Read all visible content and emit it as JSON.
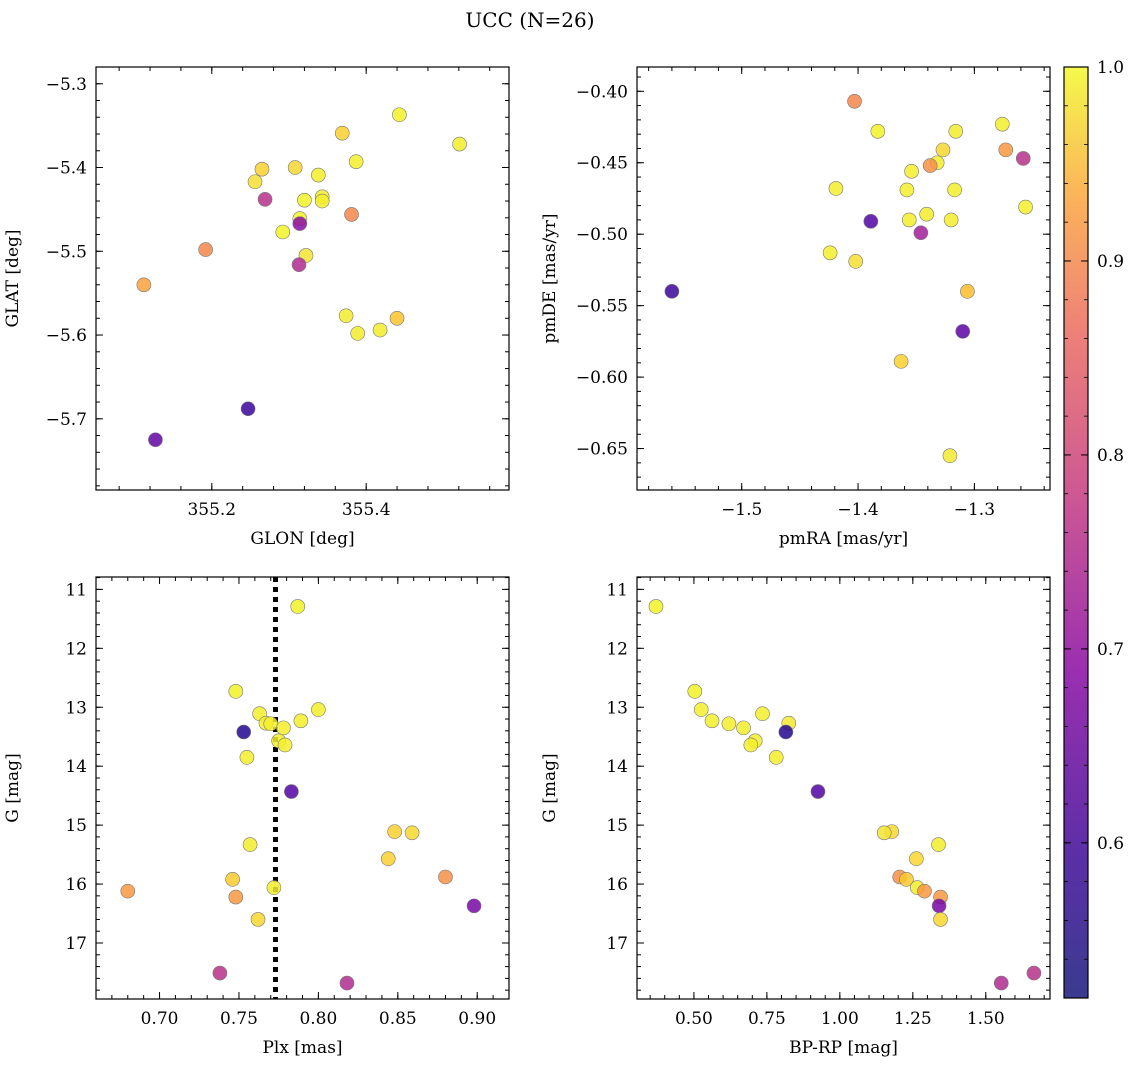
{
  "figure": {
    "title": "UCC (N=26)"
  },
  "colorbar": {
    "ticks": [
      "1.0",
      "0.9",
      "0.8",
      "0.7",
      "0.6"
    ],
    "tick_values": [
      1.0,
      0.9,
      0.8,
      0.7,
      0.6
    ],
    "vmin": 0.52,
    "vmax": 1.0,
    "colormap": "plasma"
  },
  "chart_data": [
    {
      "type": "scatter",
      "xlabel": "GLON [deg]",
      "ylabel": "GLAT [deg]",
      "xlim": [
        355.05,
        355.585
      ],
      "ylim": [
        -5.785,
        -5.28
      ],
      "xticks": [
        355.2,
        355.4
      ],
      "xtick_labels": [
        "355.2",
        "355.4"
      ],
      "yticks": [
        -5.3,
        -5.4,
        -5.5,
        -5.6,
        -5.7
      ],
      "ytick_labels": [
        "−5.3",
        "−5.4",
        "−5.5",
        "−5.6",
        "−5.7"
      ],
      "points": [
        {
          "x": 355.443,
          "y": -5.337,
          "c": 0.98
        },
        {
          "x": 355.521,
          "y": -5.372,
          "c": 0.97
        },
        {
          "x": 355.369,
          "y": -5.359,
          "c": 0.91
        },
        {
          "x": 355.387,
          "y": -5.393,
          "c": 0.97
        },
        {
          "x": 355.308,
          "y": -5.4,
          "c": 0.92
        },
        {
          "x": 355.265,
          "y": -5.402,
          "c": 0.91
        },
        {
          "x": 355.338,
          "y": -5.409,
          "c": 0.97
        },
        {
          "x": 355.256,
          "y": -5.417,
          "c": 0.93
        },
        {
          "x": 355.343,
          "y": -5.435,
          "c": 0.97
        },
        {
          "x": 355.343,
          "y": -5.44,
          "c": 0.97
        },
        {
          "x": 355.32,
          "y": -5.439,
          "c": 0.98
        },
        {
          "x": 355.269,
          "y": -5.438,
          "c": 0.7
        },
        {
          "x": 355.314,
          "y": -5.461,
          "c": 0.98
        },
        {
          "x": 355.314,
          "y": -5.467,
          "c": 0.64
        },
        {
          "x": 355.381,
          "y": -5.456,
          "c": 0.82
        },
        {
          "x": 355.292,
          "y": -5.477,
          "c": 0.98
        },
        {
          "x": 355.192,
          "y": -5.498,
          "c": 0.82
        },
        {
          "x": 355.322,
          "y": -5.505,
          "c": 0.94
        },
        {
          "x": 355.313,
          "y": -5.516,
          "c": 0.69
        },
        {
          "x": 355.112,
          "y": -5.54,
          "c": 0.85
        },
        {
          "x": 355.374,
          "y": -5.577,
          "c": 0.96
        },
        {
          "x": 355.44,
          "y": -5.58,
          "c": 0.89
        },
        {
          "x": 355.418,
          "y": -5.594,
          "c": 0.96
        },
        {
          "x": 355.389,
          "y": -5.598,
          "c": 0.96
        },
        {
          "x": 355.247,
          "y": -5.688,
          "c": 0.56
        },
        {
          "x": 355.127,
          "y": -5.725,
          "c": 0.6
        }
      ]
    },
    {
      "type": "scatter",
      "xlabel": "pmRA [mas/yr]",
      "ylabel": "pmDE [mas/yr]",
      "xlim": [
        -1.59,
        -1.235
      ],
      "ylim": [
        -0.679,
        -0.383
      ],
      "xticks": [
        -1.5,
        -1.4,
        -1.3
      ],
      "xtick_labels": [
        "−1.5",
        "−1.4",
        "−1.3"
      ],
      "yticks": [
        -0.4,
        -0.45,
        -0.5,
        -0.55,
        -0.6,
        -0.65
      ],
      "ytick_labels": [
        "−0.40",
        "−0.45",
        "−0.50",
        "−0.55",
        "−0.60",
        "−0.65"
      ],
      "points": [
        {
          "x": -1.403,
          "y": -0.407,
          "c": 0.82
        },
        {
          "x": -1.276,
          "y": -0.423,
          "c": 0.97
        },
        {
          "x": -1.383,
          "y": -0.428,
          "c": 0.98
        },
        {
          "x": -1.316,
          "y": -0.428,
          "c": 0.96
        },
        {
          "x": -1.327,
          "y": -0.441,
          "c": 0.92
        },
        {
          "x": -1.273,
          "y": -0.441,
          "c": 0.84
        },
        {
          "x": -1.258,
          "y": -0.447,
          "c": 0.7
        },
        {
          "x": -1.332,
          "y": -0.45,
          "c": 0.96
        },
        {
          "x": -1.338,
          "y": -0.452,
          "c": 0.83
        },
        {
          "x": -1.354,
          "y": -0.456,
          "c": 0.97
        },
        {
          "x": -1.419,
          "y": -0.468,
          "c": 0.97
        },
        {
          "x": -1.358,
          "y": -0.469,
          "c": 0.97
        },
        {
          "x": -1.317,
          "y": -0.469,
          "c": 0.97
        },
        {
          "x": -1.341,
          "y": -0.486,
          "c": 0.96
        },
        {
          "x": -1.356,
          "y": -0.49,
          "c": 0.97
        },
        {
          "x": -1.32,
          "y": -0.49,
          "c": 0.97
        },
        {
          "x": -1.389,
          "y": -0.491,
          "c": 0.58
        },
        {
          "x": -1.256,
          "y": -0.481,
          "c": 0.97
        },
        {
          "x": -1.346,
          "y": -0.499,
          "c": 0.67
        },
        {
          "x": -1.424,
          "y": -0.513,
          "c": 0.97
        },
        {
          "x": -1.402,
          "y": -0.519,
          "c": 0.93
        },
        {
          "x": -1.306,
          "y": -0.54,
          "c": 0.88
        },
        {
          "x": -1.56,
          "y": -0.54,
          "c": 0.56
        },
        {
          "x": -1.31,
          "y": -0.568,
          "c": 0.59
        },
        {
          "x": -1.363,
          "y": -0.589,
          "c": 0.91
        },
        {
          "x": -1.321,
          "y": -0.655,
          "c": 0.95
        }
      ]
    },
    {
      "type": "scatter",
      "xlabel": "Plx [mas]",
      "ylabel": "G [mag]",
      "xlim": [
        0.66,
        0.92
      ],
      "ylim": [
        17.95,
        10.79
      ],
      "y_inverted": true,
      "vline": {
        "x": 0.773,
        "style": "dotted"
      },
      "xticks": [
        0.7,
        0.75,
        0.8,
        0.85,
        0.9
      ],
      "xtick_labels": [
        "0.70",
        "0.75",
        "0.80",
        "0.85",
        "0.90"
      ],
      "yticks": [
        11,
        12,
        13,
        14,
        15,
        16,
        17
      ],
      "ytick_labels": [
        "11",
        "12",
        "13",
        "14",
        "15",
        "16",
        "17"
      ],
      "points": [
        {
          "x": 0.787,
          "y": 11.29,
          "c": 0.98
        },
        {
          "x": 0.748,
          "y": 12.73,
          "c": 0.98
        },
        {
          "x": 0.8,
          "y": 13.04,
          "c": 0.97
        },
        {
          "x": 0.763,
          "y": 13.11,
          "c": 0.97
        },
        {
          "x": 0.789,
          "y": 13.23,
          "c": 0.97
        },
        {
          "x": 0.767,
          "y": 13.27,
          "c": 0.97
        },
        {
          "x": 0.77,
          "y": 13.28,
          "c": 0.97
        },
        {
          "x": 0.778,
          "y": 13.35,
          "c": 0.97
        },
        {
          "x": 0.753,
          "y": 13.42,
          "c": 0.54
        },
        {
          "x": 0.775,
          "y": 13.57,
          "c": 0.97
        },
        {
          "x": 0.779,
          "y": 13.64,
          "c": 0.97
        },
        {
          "x": 0.755,
          "y": 13.85,
          "c": 0.97
        },
        {
          "x": 0.783,
          "y": 14.43,
          "c": 0.58
        },
        {
          "x": 0.848,
          "y": 15.11,
          "c": 0.91
        },
        {
          "x": 0.859,
          "y": 15.13,
          "c": 0.92
        },
        {
          "x": 0.757,
          "y": 15.33,
          "c": 0.96
        },
        {
          "x": 0.844,
          "y": 15.57,
          "c": 0.91
        },
        {
          "x": 0.88,
          "y": 15.88,
          "c": 0.83
        },
        {
          "x": 0.746,
          "y": 15.92,
          "c": 0.9
        },
        {
          "x": 0.772,
          "y": 16.06,
          "c": 0.96
        },
        {
          "x": 0.68,
          "y": 16.12,
          "c": 0.84
        },
        {
          "x": 0.748,
          "y": 16.22,
          "c": 0.84
        },
        {
          "x": 0.898,
          "y": 16.37,
          "c": 0.62
        },
        {
          "x": 0.762,
          "y": 16.6,
          "c": 0.92
        },
        {
          "x": 0.738,
          "y": 17.51,
          "c": 0.7
        },
        {
          "x": 0.818,
          "y": 17.68,
          "c": 0.69
        }
      ]
    },
    {
      "type": "scatter",
      "xlabel": "BP-RP [mag]",
      "ylabel": "G [mag]",
      "xlim": [
        0.305,
        1.72
      ],
      "ylim": [
        17.95,
        10.79
      ],
      "y_inverted": true,
      "xticks": [
        0.5,
        0.75,
        1.0,
        1.25,
        1.5
      ],
      "xtick_labels": [
        "0.50",
        "0.75",
        "1.00",
        "1.25",
        "1.50"
      ],
      "yticks": [
        11,
        12,
        13,
        14,
        15,
        16,
        17
      ],
      "ytick_labels": [
        "11",
        "12",
        "13",
        "14",
        "15",
        "16",
        "17"
      ],
      "points": [
        {
          "x": 0.37,
          "y": 11.29,
          "c": 0.98
        },
        {
          "x": 0.503,
          "y": 12.73,
          "c": 0.98
        },
        {
          "x": 0.525,
          "y": 13.04,
          "c": 0.97
        },
        {
          "x": 0.562,
          "y": 13.23,
          "c": 0.97
        },
        {
          "x": 0.62,
          "y": 13.28,
          "c": 0.97
        },
        {
          "x": 0.67,
          "y": 13.35,
          "c": 0.97
        },
        {
          "x": 0.735,
          "y": 13.11,
          "c": 0.97
        },
        {
          "x": 0.825,
          "y": 13.27,
          "c": 0.95
        },
        {
          "x": 0.815,
          "y": 13.42,
          "c": 0.54
        },
        {
          "x": 0.71,
          "y": 13.57,
          "c": 0.97
        },
        {
          "x": 0.695,
          "y": 13.64,
          "c": 0.97
        },
        {
          "x": 0.782,
          "y": 13.85,
          "c": 0.97
        },
        {
          "x": 0.925,
          "y": 14.43,
          "c": 0.58
        },
        {
          "x": 1.178,
          "y": 15.11,
          "c": 0.92
        },
        {
          "x": 1.152,
          "y": 15.13,
          "c": 0.94
        },
        {
          "x": 1.338,
          "y": 15.33,
          "c": 0.96
        },
        {
          "x": 1.262,
          "y": 15.57,
          "c": 0.92
        },
        {
          "x": 1.205,
          "y": 15.88,
          "c": 0.83
        },
        {
          "x": 1.228,
          "y": 15.92,
          "c": 0.9
        },
        {
          "x": 1.265,
          "y": 16.06,
          "c": 0.96
        },
        {
          "x": 1.29,
          "y": 16.12,
          "c": 0.84
        },
        {
          "x": 1.345,
          "y": 16.22,
          "c": 0.84
        },
        {
          "x": 1.34,
          "y": 16.37,
          "c": 0.62
        },
        {
          "x": 1.345,
          "y": 16.6,
          "c": 0.92
        },
        {
          "x": 1.665,
          "y": 17.51,
          "c": 0.7
        },
        {
          "x": 1.553,
          "y": 17.68,
          "c": 0.69
        }
      ]
    }
  ]
}
